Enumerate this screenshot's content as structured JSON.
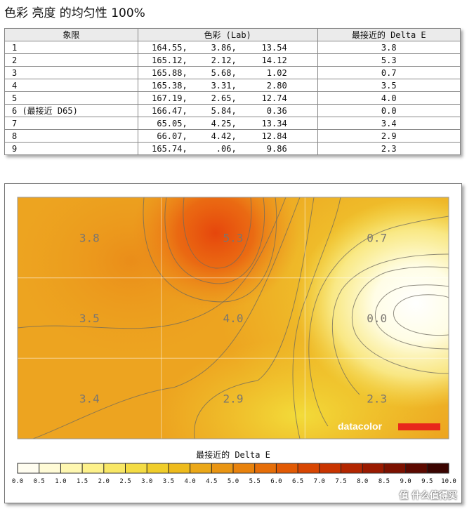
{
  "title": "色彩 亮度 的均匀性 100%",
  "table": {
    "headers": [
      "象限",
      "色彩 (Lab)",
      "最接近的 Delta E"
    ],
    "rows": [
      {
        "region": "1",
        "L": "164.55,",
        "a": "3.86,",
        "b": "13.54",
        "delta_e": "3.8"
      },
      {
        "region": "2",
        "L": "165.12,",
        "a": "2.12,",
        "b": "14.12",
        "delta_e": "5.3"
      },
      {
        "region": "3",
        "L": "165.88,",
        "a": "5.68,",
        "b": "1.02",
        "delta_e": "0.7"
      },
      {
        "region": "4",
        "L": "165.38,",
        "a": "3.31,",
        "b": "2.80",
        "delta_e": "3.5"
      },
      {
        "region": "5",
        "L": "167.19,",
        "a": "2.65,",
        "b": "12.74",
        "delta_e": "4.0"
      },
      {
        "region": "6 (最接近 D65)",
        "L": "166.47,",
        "a": "5.84,",
        "b": "0.36",
        "delta_e": "0.0"
      },
      {
        "region": "7",
        "L": "65.05,",
        "a": "4.25,",
        "b": "13.34",
        "delta_e": "3.4"
      },
      {
        "region": "8",
        "L": "66.07,",
        "a": "4.42,",
        "b": "12.84",
        "delta_e": "2.9"
      },
      {
        "region": "9",
        "L": "165.74,",
        "a": ".06,",
        "b": "9.86",
        "delta_e": "2.3"
      }
    ]
  },
  "chart_data": {
    "type": "heatmap",
    "grid": {
      "rows": 3,
      "cols": 3
    },
    "values": [
      [
        3.8,
        5.3,
        0.7
      ],
      [
        3.5,
        4.0,
        0.0
      ],
      [
        3.4,
        2.9,
        2.3
      ]
    ],
    "value_labels": [
      [
        "3.8",
        "5.3",
        "0.7"
      ],
      [
        "3.5",
        "4.0",
        "0.0"
      ],
      [
        "3.4",
        "2.9",
        "2.3"
      ]
    ],
    "colorbar": {
      "title": "最接近的 Delta E",
      "range": [
        0,
        10
      ],
      "ticks": [
        "0.0",
        "0.5",
        "1.0",
        "1.5",
        "2.0",
        "2.5",
        "3.0",
        "3.5",
        "4.0",
        "4.5",
        "5.0",
        "5.5",
        "6.0",
        "6.5",
        "7.0",
        "7.5",
        "8.0",
        "8.5",
        "9.0",
        "9.5",
        "10.0"
      ],
      "colors": [
        "#fffdf0",
        "#fffbd6",
        "#fef7b0",
        "#fdf18a",
        "#f8e765",
        "#f4dc44",
        "#f0cd2a",
        "#eebb1c",
        "#eba818",
        "#e99512",
        "#e8820c",
        "#e66e08",
        "#e25a04",
        "#d84602",
        "#c93400",
        "#b32600",
        "#9a1a00",
        "#7c1100",
        "#5c0900",
        "#3a0400"
      ]
    },
    "brand": "datacolor",
    "brand_bar_color": "#e8271b"
  },
  "watermark": "值 什么值得买"
}
